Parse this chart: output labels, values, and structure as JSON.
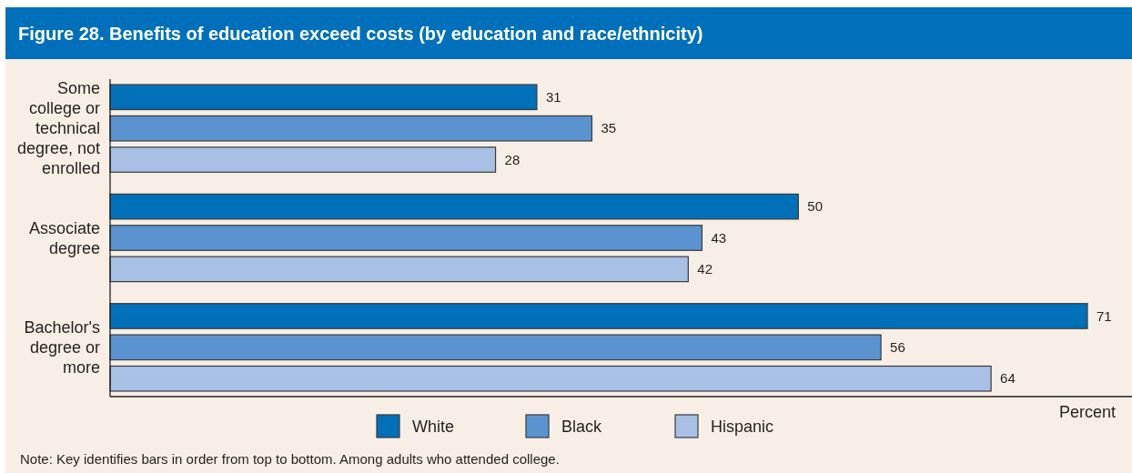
{
  "chart_data": {
    "type": "bar",
    "orientation": "horizontal",
    "title": "Figure 28. Benefits of education exceed costs (by education and race/ethnicity)",
    "categories": [
      "Some college or technical degree, not enrolled",
      "Associate degree",
      "Bachelor's degree or more"
    ],
    "series": [
      {
        "name": "White",
        "color": "#0070b8",
        "values": [
          31,
          50,
          71
        ]
      },
      {
        "name": "Black",
        "color": "#5a93d0",
        "values": [
          35,
          43,
          56
        ]
      },
      {
        "name": "Hispanic",
        "color": "#a8c0e6",
        "values": [
          28,
          42,
          64
        ]
      }
    ],
    "xlabel": "Percent",
    "data_labels": true,
    "legend": "bottom",
    "annotations": [
      "Note: Key identifies bars in order from top to bottom. Among adults who attended college."
    ]
  }
}
